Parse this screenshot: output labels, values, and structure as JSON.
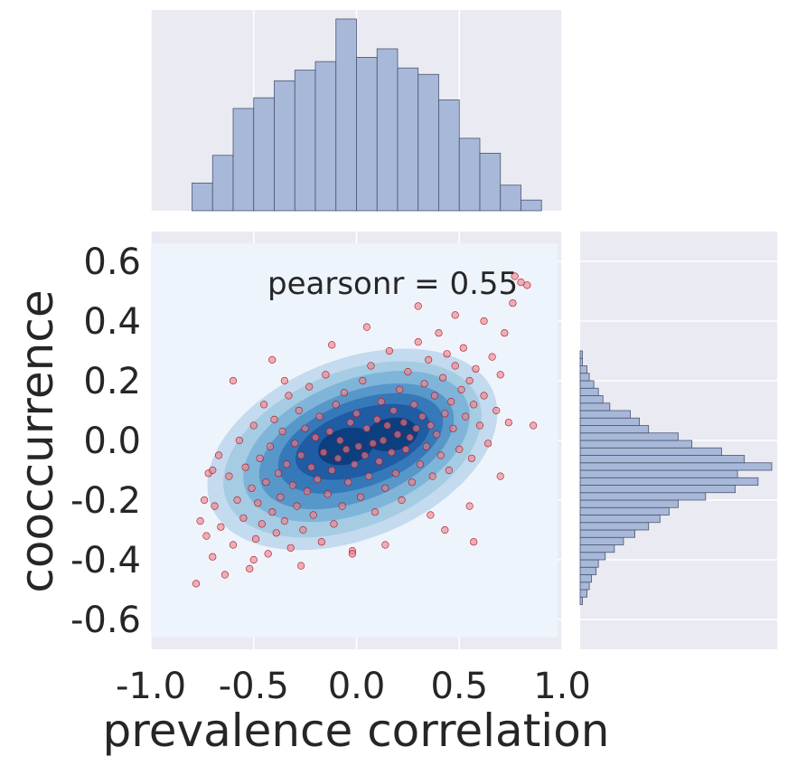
{
  "chart_data": {
    "type": "scatter",
    "kind": "jointplot with kde density and marginal histograms",
    "xlabel": "prevalence correlation",
    "ylabel": "cooccurrence",
    "xlim": [
      -1.0,
      1.0
    ],
    "ylim": [
      -0.7,
      0.7
    ],
    "xticks": [
      "-1.0",
      "-0.5",
      "0.0",
      "0.5",
      "1.0"
    ],
    "yticks": [
      "-0.6",
      "-0.4",
      "-0.2",
      "0.0",
      "0.2",
      "0.4",
      "0.6"
    ],
    "annotation": "pearsonr = 0.55",
    "grid": true,
    "colors": {
      "axes_bg": "#eaeaf2",
      "kde_bg": "#eef4fc",
      "kde_palette": [
        "#d9e7f5",
        "#c4daee",
        "#a5cce3",
        "#7fb5d9",
        "#5797ca",
        "#3679b9",
        "#1f5ca3",
        "#0b3f80"
      ],
      "hist_fill": "#a8b8d9",
      "hist_edge": "#4a5570",
      "point_fill": "#ef7f85",
      "point_edge": "#b01020"
    },
    "x_histogram": {
      "bin_edges": [
        -0.8,
        -0.7,
        -0.6,
        -0.5,
        -0.4,
        -0.3,
        -0.2,
        -0.1,
        0.0,
        0.1,
        0.2,
        0.3,
        0.4,
        0.5,
        0.6,
        0.7,
        0.8,
        0.9
      ],
      "counts": [
        13,
        26,
        48,
        53,
        61,
        66,
        70,
        90,
        72,
        76,
        67,
        64,
        52,
        34,
        27,
        12,
        5
      ]
    },
    "y_histogram": {
      "bin_edges": [
        -0.55,
        -0.525,
        -0.5,
        -0.475,
        -0.45,
        -0.425,
        -0.4,
        -0.375,
        -0.35,
        -0.325,
        -0.3,
        -0.275,
        -0.25,
        -0.225,
        -0.2,
        -0.175,
        -0.15,
        -0.125,
        -0.1,
        -0.075,
        -0.05,
        -0.025,
        0.0,
        0.025,
        0.05,
        0.075,
        0.1,
        0.125,
        0.15,
        0.175,
        0.2,
        0.225,
        0.25,
        0.275,
        0.3,
        0.325,
        0.35,
        0.375,
        0.4,
        0.425,
        0.45,
        0.475,
        0.5,
        0.525,
        0.55,
        0.575
      ],
      "counts": [
        1,
        3,
        4,
        5,
        7,
        8,
        11,
        15,
        19,
        24,
        30,
        35,
        39,
        43,
        55,
        68,
        78,
        69,
        84,
        72,
        62,
        49,
        43,
        30,
        26,
        22,
        13,
        10,
        8,
        6,
        4,
        3,
        1,
        1,
        0,
        0,
        0,
        0,
        0,
        0,
        0,
        0,
        0,
        0,
        0
      ]
    },
    "kde_levels": [
      {
        "level": 1,
        "cx": -0.02,
        "cy": -0.03,
        "rx": 0.74,
        "ry": 0.3,
        "angle": 22
      },
      {
        "level": 2,
        "cx": -0.02,
        "cy": -0.03,
        "rx": 0.66,
        "ry": 0.26,
        "angle": 22
      },
      {
        "level": 3,
        "cx": 0.0,
        "cy": -0.02,
        "rx": 0.58,
        "ry": 0.22,
        "angle": 22
      },
      {
        "level": 4,
        "cx": 0.0,
        "cy": -0.02,
        "rx": 0.5,
        "ry": 0.18,
        "angle": 22
      },
      {
        "level": 5,
        "cx": 0.02,
        "cy": -0.01,
        "rx": 0.42,
        "ry": 0.145,
        "angle": 20
      },
      {
        "level": 6,
        "cx": 0.03,
        "cy": -0.005,
        "rx": 0.34,
        "ry": 0.11,
        "angle": 18
      },
      {
        "level": 7,
        "cx": -0.05,
        "cy": -0.02,
        "rx": 0.14,
        "ry": 0.06,
        "angle": 15
      },
      {
        "level": 7,
        "cx": 0.17,
        "cy": 0.02,
        "rx": 0.13,
        "ry": 0.055,
        "angle": 10
      }
    ],
    "points": [
      [
        -0.78,
        -0.48
      ],
      [
        -0.76,
        -0.27
      ],
      [
        -0.73,
        -0.32
      ],
      [
        -0.7,
        -0.39
      ],
      [
        -0.72,
        -0.11
      ],
      [
        -0.69,
        -0.22
      ],
      [
        -0.67,
        -0.05
      ],
      [
        -0.66,
        -0.29
      ],
      [
        -0.64,
        -0.45
      ],
      [
        -0.62,
        -0.12
      ],
      [
        -0.6,
        -0.35
      ],
      [
        -0.58,
        -0.2
      ],
      [
        -0.57,
        0.0
      ],
      [
        -0.55,
        -0.26
      ],
      [
        -0.54,
        -0.09
      ],
      [
        -0.52,
        -0.43
      ],
      [
        -0.51,
        -0.16
      ],
      [
        -0.5,
        0.05
      ],
      [
        -0.49,
        -0.33
      ],
      [
        -0.48,
        -0.21
      ],
      [
        -0.47,
        -0.06
      ],
      [
        -0.46,
        -0.28
      ],
      [
        -0.45,
        0.12
      ],
      [
        -0.44,
        -0.14
      ],
      [
        -0.43,
        -0.38
      ],
      [
        -0.42,
        -0.02
      ],
      [
        -0.41,
        -0.24
      ],
      [
        -0.4,
        0.07
      ],
      [
        -0.39,
        -0.31
      ],
      [
        -0.38,
        -0.11
      ],
      [
        -0.37,
        -0.19
      ],
      [
        -0.36,
        0.03
      ],
      [
        -0.35,
        -0.27
      ],
      [
        -0.34,
        -0.08
      ],
      [
        -0.33,
        0.15
      ],
      [
        -0.32,
        -0.36
      ],
      [
        -0.31,
        -0.15
      ],
      [
        -0.3,
        -0.01
      ],
      [
        -0.29,
        -0.22
      ],
      [
        -0.28,
        0.1
      ],
      [
        -0.27,
        -0.05
      ],
      [
        -0.26,
        -0.3
      ],
      [
        -0.25,
        0.04
      ],
      [
        -0.24,
        -0.17
      ],
      [
        -0.23,
        0.18
      ],
      [
        -0.22,
        -0.09
      ],
      [
        -0.21,
        -0.25
      ],
      [
        -0.2,
        0.01
      ],
      [
        -0.19,
        -0.13
      ],
      [
        -0.18,
        0.08
      ],
      [
        -0.17,
        -0.34
      ],
      [
        -0.16,
        -0.04
      ],
      [
        -0.15,
        0.22
      ],
      [
        -0.14,
        -0.18
      ],
      [
        -0.13,
        0.03
      ],
      [
        -0.12,
        -0.1
      ],
      [
        -0.11,
        -0.28
      ],
      [
        -0.1,
        0.12
      ],
      [
        -0.09,
        -0.06
      ],
      [
        -0.08,
        0.0
      ],
      [
        -0.07,
        -0.22
      ],
      [
        -0.06,
        0.16
      ],
      [
        -0.05,
        -0.03
      ],
      [
        -0.04,
        -0.14
      ],
      [
        -0.03,
        0.06
      ],
      [
        -0.02,
        -0.37
      ],
      [
        -0.01,
        -0.08
      ],
      [
        0.0,
        0.09
      ],
      [
        0.01,
        -0.02
      ],
      [
        0.02,
        -0.19
      ],
      [
        0.03,
        0.2
      ],
      [
        0.04,
        -0.05
      ],
      [
        0.05,
        0.04
      ],
      [
        0.06,
        -0.12
      ],
      [
        0.07,
        0.25
      ],
      [
        0.08,
        -0.01
      ],
      [
        0.09,
        -0.24
      ],
      [
        0.1,
        0.07
      ],
      [
        0.11,
        -0.07
      ],
      [
        0.12,
        0.13
      ],
      [
        0.13,
        0.0
      ],
      [
        0.14,
        -0.16
      ],
      [
        0.15,
        0.05
      ],
      [
        0.16,
        0.3
      ],
      [
        0.17,
        -0.04
      ],
      [
        0.18,
        0.1
      ],
      [
        0.19,
        -0.11
      ],
      [
        0.2,
        0.02
      ],
      [
        0.21,
        0.17
      ],
      [
        0.22,
        -0.2
      ],
      [
        0.23,
        0.06
      ],
      [
        0.24,
        -0.03
      ],
      [
        0.25,
        0.23
      ],
      [
        0.26,
        0.01
      ],
      [
        0.27,
        -0.14
      ],
      [
        0.28,
        0.12
      ],
      [
        0.29,
        0.04
      ],
      [
        0.3,
        0.33
      ],
      [
        0.31,
        -0.08
      ],
      [
        0.32,
        0.08
      ],
      [
        0.33,
        0.19
      ],
      [
        0.34,
        -0.02
      ],
      [
        0.35,
        0.27
      ],
      [
        0.36,
        0.05
      ],
      [
        0.37,
        -0.12
      ],
      [
        0.38,
        0.15
      ],
      [
        0.39,
        0.02
      ],
      [
        0.4,
        0.36
      ],
      [
        0.41,
        -0.05
      ],
      [
        0.42,
        0.21
      ],
      [
        0.43,
        0.09
      ],
      [
        0.44,
        0.29
      ],
      [
        0.45,
        -0.1
      ],
      [
        0.46,
        0.13
      ],
      [
        0.47,
        0.04
      ],
      [
        0.48,
        0.25
      ],
      [
        0.5,
        -0.03
      ],
      [
        0.51,
        0.17
      ],
      [
        0.52,
        0.31
      ],
      [
        0.53,
        0.08
      ],
      [
        0.55,
        0.2
      ],
      [
        0.56,
        -0.06
      ],
      [
        0.57,
        0.12
      ],
      [
        0.58,
        0.24
      ],
      [
        0.6,
        0.05
      ],
      [
        0.62,
        0.15
      ],
      [
        0.64,
        -0.01
      ],
      [
        0.66,
        0.28
      ],
      [
        0.68,
        0.1
      ],
      [
        0.7,
        0.22
      ],
      [
        0.72,
        0.36
      ],
      [
        0.74,
        0.06
      ],
      [
        0.76,
        0.46
      ],
      [
        0.77,
        0.55
      ],
      [
        0.8,
        0.53
      ],
      [
        0.83,
        0.52
      ],
      [
        0.86,
        0.05
      ],
      [
        0.57,
        -0.34
      ],
      [
        0.43,
        -0.3
      ],
      [
        0.14,
        -0.35
      ],
      [
        -0.02,
        -0.38
      ],
      [
        -0.27,
        -0.42
      ],
      [
        -0.5,
        -0.4
      ],
      [
        0.3,
        0.45
      ],
      [
        0.05,
        0.38
      ],
      [
        -0.12,
        0.32
      ],
      [
        -0.41,
        0.27
      ],
      [
        -0.6,
        0.2
      ],
      [
        0.62,
        0.4
      ],
      [
        0.48,
        0.42
      ],
      [
        -0.7,
        -0.1
      ],
      [
        -0.74,
        -0.2
      ],
      [
        -0.35,
        0.2
      ],
      [
        0.55,
        -0.22
      ],
      [
        0.7,
        -0.12
      ],
      [
        0.36,
        -0.25
      ]
    ]
  }
}
